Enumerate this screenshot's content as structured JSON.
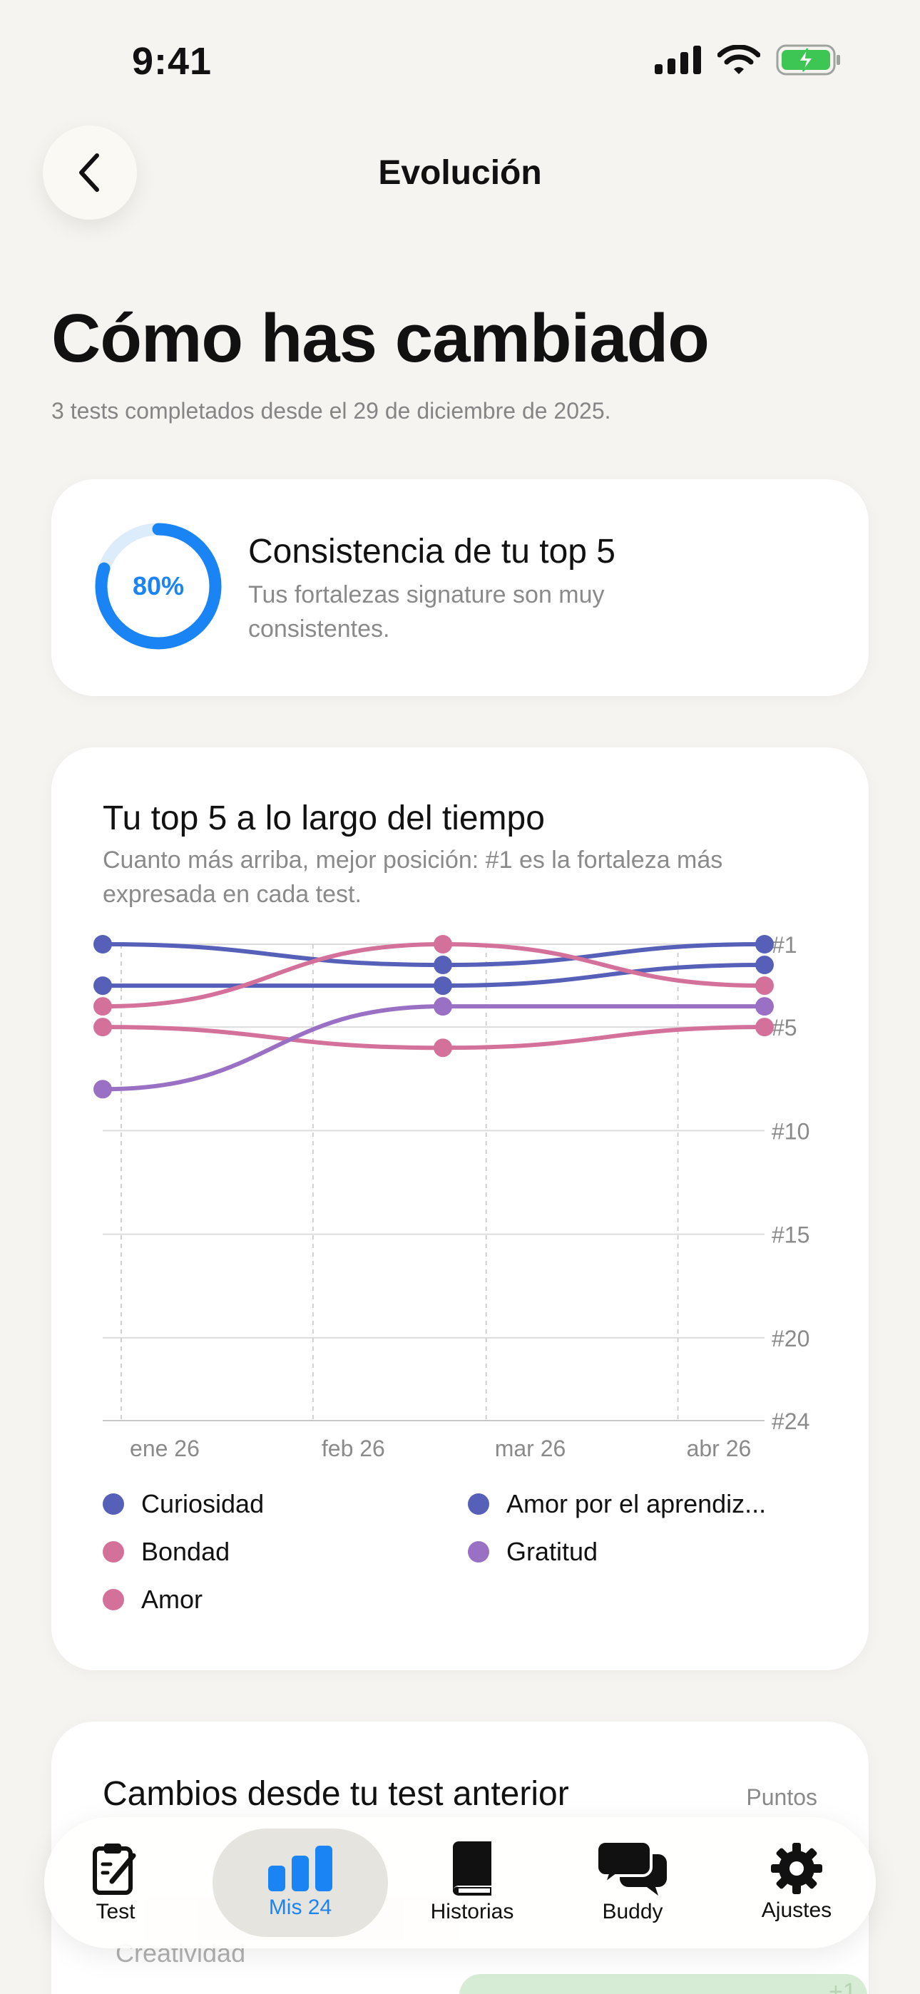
{
  "status": {
    "time": "9:41"
  },
  "header": {
    "title": "Evolución"
  },
  "page": {
    "title": "Cómo has cambiado",
    "subtitle": "3 tests completados desde el 29 de diciembre de 2025."
  },
  "consistency": {
    "percent_label": "80%",
    "percent": 80,
    "title": "Consistencia de tu top 5",
    "description": "Tus fortalezas signature son muy consistentes.",
    "ring_color": "#1a84f5",
    "ring_track": "#dcecfb"
  },
  "top5_chart": {
    "title": "Tu top 5 a lo largo del tiempo",
    "subtitle": "Cuanto más arriba, mejor posición: #1 es la fortaleza más expresada en cada test."
  },
  "chart_data": {
    "type": "line",
    "y_axis": {
      "ticks": [
        "#1",
        "#5",
        "#10",
        "#15",
        "#20",
        "#24"
      ],
      "tick_values": [
        1,
        5,
        10,
        15,
        20,
        24
      ],
      "range": [
        1,
        24
      ],
      "inverted": true
    },
    "x_axis": {
      "ticks": [
        "ene 26",
        "feb 26",
        "mar 26",
        "abr 26"
      ]
    },
    "test_dates": [
      "2025-12-29",
      "2026-02-22",
      "2026-04-15"
    ],
    "grid": true,
    "series": [
      {
        "name": "Curiosidad",
        "color": "#5660b8",
        "values": [
          1,
          2,
          1
        ]
      },
      {
        "name": "Amor por el aprendiz...",
        "color": "#5660b8",
        "values": [
          3,
          3,
          2
        ]
      },
      {
        "name": "Bondad",
        "color": "#d4719a",
        "values": [
          5,
          6,
          5
        ]
      },
      {
        "name": "Gratitud",
        "color": "#9a70c4",
        "values": [
          8,
          4,
          4
        ]
      },
      {
        "name": "Amor",
        "color": "#d4719a",
        "values": [
          4,
          1,
          3
        ]
      }
    ],
    "legend_position": "bottom"
  },
  "changes": {
    "title": "Cambios desde tu test anterior",
    "points_label": "Puntos",
    "rows": [
      {
        "label": "Creatividad",
        "delta": "+1"
      }
    ]
  },
  "tabs": [
    {
      "label": "Test",
      "icon": "clipboard-icon"
    },
    {
      "label": "Mis 24",
      "icon": "bar-chart-icon",
      "active": true
    },
    {
      "label": "Historias",
      "icon": "book-icon"
    },
    {
      "label": "Buddy",
      "icon": "chat-bubbles-icon"
    },
    {
      "label": "Ajustes",
      "icon": "gear-icon"
    }
  ]
}
